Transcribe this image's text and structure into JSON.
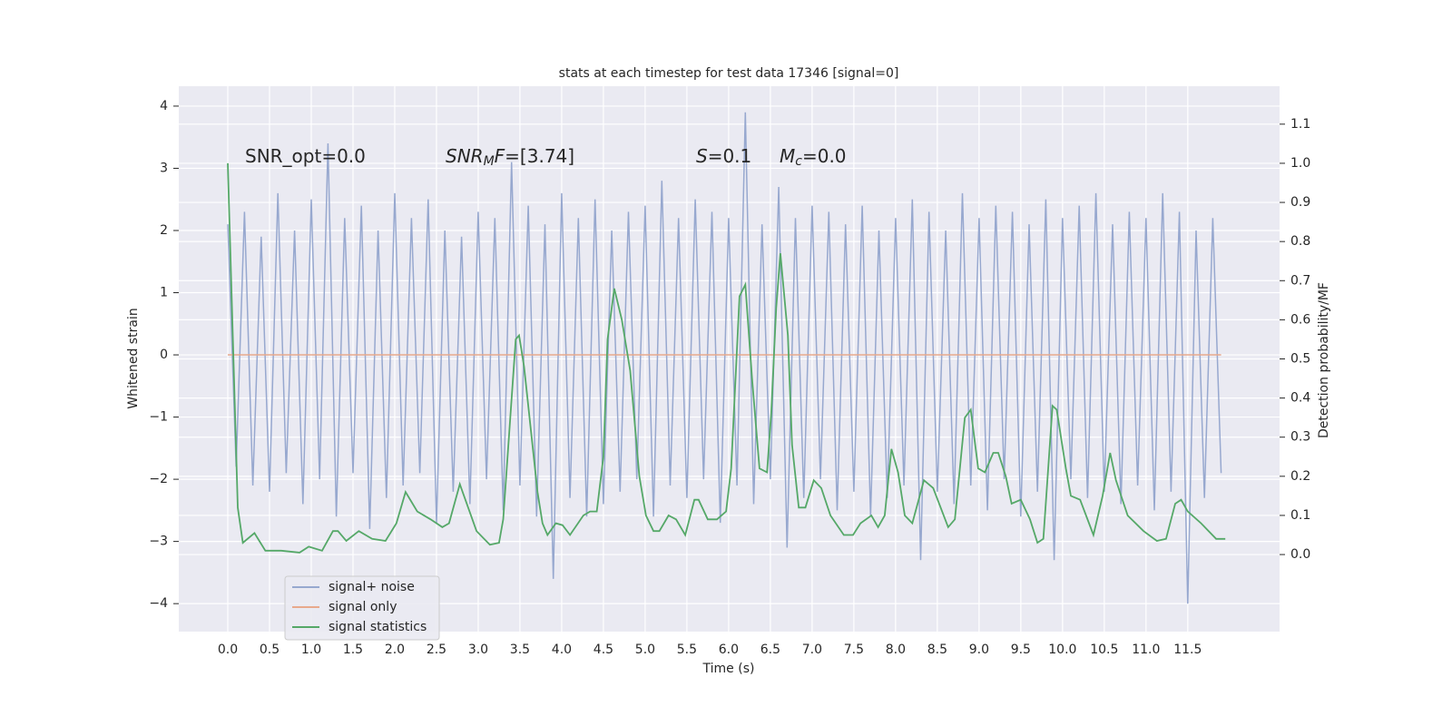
{
  "chart_data": {
    "type": "line",
    "title": "stats at each timestep for test data 17346 [signal=0]",
    "x_label": "Time (s)",
    "y_label": "Whitened strain",
    "y2_label": "Detection probability/MF",
    "annotations": [
      [
        {
          "text": "SNR_opt=0.0"
        }
      ],
      [
        {
          "text": "SNR",
          "style": "italic"
        },
        {
          "text": "M",
          "style": "sub"
        },
        {
          "text": "F",
          "style": "italic"
        },
        {
          "text": "=[3.74]"
        }
      ],
      [
        {
          "text": "S",
          "style": "italic"
        },
        {
          "text": "=0.1"
        }
      ],
      [
        {
          "text": "M",
          "style": "italic"
        },
        {
          "text": "c",
          "style": "sub"
        },
        {
          "text": "=0.0"
        }
      ]
    ],
    "xlim": [
      -0.587,
      12.6
    ],
    "ylim": [
      -4.45,
      4.32
    ],
    "y2lim": [
      -0.197,
      1.197
    ],
    "xticks": [
      {
        "value": 0,
        "label": "0.0"
      },
      0.5,
      {
        "value": 1,
        "label": "1.0"
      },
      1.5,
      {
        "value": 2,
        "label": "2.0"
      },
      2.5,
      {
        "value": 3,
        "label": "3.0"
      },
      3.5,
      {
        "value": 4,
        "label": "4.0"
      },
      4.5,
      {
        "value": 5,
        "label": "5.0"
      },
      5.5,
      {
        "value": 6,
        "label": "6.0"
      },
      6.5,
      {
        "value": 7,
        "label": "7.0"
      },
      7.5,
      {
        "value": 8,
        "label": "8.0"
      },
      8.5,
      {
        "value": 9,
        "label": "9.0"
      },
      9.5,
      {
        "value": 10,
        "label": "10.0"
      },
      10.5,
      {
        "value": 11,
        "label": "11.0"
      },
      11.5
    ],
    "yticks": [
      {
        "value": -4,
        "label": "−4"
      },
      {
        "value": -3,
        "label": "−3"
      },
      {
        "value": -2,
        "label": "−2"
      },
      {
        "value": -1,
        "label": "−1"
      },
      0,
      1,
      2,
      3,
      4
    ],
    "y2ticks": [
      {
        "value": 0,
        "label": "0.0"
      },
      0.1,
      0.2,
      0.3,
      0.4,
      0.5,
      0.6,
      0.7,
      0.8,
      0.9,
      {
        "value": 1,
        "label": "1.0"
      },
      1.1
    ],
    "grid": true,
    "legend": "lower left",
    "series": [
      {
        "name": "signal+ noise",
        "color": "#97a8cf",
        "x": [
          0,
          0.1,
          0.2,
          0.3,
          0.4,
          0.5,
          0.6,
          0.7,
          0.8,
          0.9,
          1,
          1.1,
          1.2,
          1.3,
          1.4,
          1.5,
          1.6,
          1.7,
          1.8,
          1.9,
          2,
          2.1,
          2.2,
          2.3,
          2.4,
          2.5,
          2.6,
          2.7,
          2.8,
          2.9,
          3,
          3.1,
          3.2,
          3.3,
          3.4,
          3.5,
          3.6,
          3.7,
          3.8,
          3.9,
          4,
          4.1,
          4.2,
          4.3,
          4.4,
          4.5,
          4.6,
          4.7,
          4.8,
          4.9,
          5,
          5.1,
          5.2,
          5.3,
          5.4,
          5.5,
          5.6,
          5.7,
          5.8,
          5.9,
          6,
          6.1,
          6.2,
          6.3,
          6.4,
          6.5,
          6.6,
          6.7,
          6.8,
          6.9,
          7,
          7.1,
          7.2,
          7.3,
          7.4,
          7.5,
          7.6,
          7.7,
          7.8,
          7.9,
          8,
          8.1,
          8.2,
          8.3,
          8.4,
          8.5,
          8.6,
          8.7,
          8.8,
          8.9,
          9,
          9.1,
          9.2,
          9.3,
          9.4,
          9.5,
          9.6,
          9.7,
          9.8,
          9.9,
          10,
          10.1,
          10.2,
          10.3,
          10.4,
          10.5,
          10.6,
          10.7,
          10.8,
          10.9,
          11,
          11.1,
          11.2,
          11.3,
          11.4,
          11.5,
          11.6,
          11.7,
          11.8,
          11.9
        ],
        "values": [
          2.1,
          -1.8,
          2.3,
          -2.1,
          1.9,
          -2.2,
          2.6,
          -1.9,
          2.0,
          -2.4,
          2.5,
          -2.0,
          3.4,
          -2.6,
          2.2,
          -1.9,
          2.4,
          -2.8,
          2.0,
          -2.3,
          2.6,
          -2.1,
          2.2,
          -1.9,
          2.5,
          -2.7,
          2.0,
          -2.2,
          1.9,
          -2.4,
          2.3,
          -2.0,
          2.2,
          -2.5,
          3.1,
          -2.1,
          2.4,
          -2.6,
          2.1,
          -3.6,
          2.6,
          -2.3,
          2.2,
          -2.6,
          2.5,
          -2.4,
          2.0,
          -2.2,
          2.3,
          -2.0,
          2.4,
          -2.6,
          2.8,
          -2.1,
          2.2,
          -2.3,
          2.5,
          -2.0,
          2.3,
          -2.7,
          2.2,
          -2.1,
          3.9,
          -2.4,
          2.1,
          -2.0,
          2.7,
          -3.1,
          2.2,
          -2.3,
          2.4,
          -2.0,
          2.3,
          -2.5,
          2.1,
          -2.2,
          2.4,
          -2.6,
          2.0,
          -2.3,
          2.2,
          -2.1,
          2.5,
          -3.3,
          2.3,
          -2.2,
          2.0,
          -2.4,
          2.6,
          -2.1,
          2.2,
          -2.5,
          2.4,
          -2.0,
          2.3,
          -2.6,
          2.1,
          -2.2,
          2.5,
          -3.3,
          2.2,
          -2.0,
          2.4,
          -2.3,
          2.6,
          -2.2,
          2.1,
          -2.4,
          2.3,
          -2.1,
          2.2,
          -2.5,
          2.6,
          -2.2,
          2.3,
          -4.0,
          2.0,
          -2.3,
          2.2,
          -1.9
        ]
      },
      {
        "name": "signal only",
        "color": "#e8a98c",
        "x": [
          0,
          11.9
        ],
        "values": [
          0,
          0
        ]
      },
      {
        "name": "signal statistics",
        "color": "#55a868",
        "axis": "y2",
        "x": [
          0,
          0.12,
          0.18,
          0.32,
          0.45,
          0.64,
          0.86,
          0.97,
          1.13,
          1.26,
          1.32,
          1.42,
          1.57,
          1.73,
          1.89,
          2.02,
          2.13,
          2.27,
          2.43,
          2.57,
          2.65,
          2.78,
          2.98,
          3.14,
          3.25,
          3.3,
          3.45,
          3.49,
          3.55,
          3.71,
          3.77,
          3.83,
          3.93,
          4.01,
          4.1,
          4.26,
          4.34,
          4.42,
          4.5,
          4.55,
          4.63,
          4.72,
          4.82,
          4.93,
          5.01,
          5.1,
          5.17,
          5.28,
          5.37,
          5.48,
          5.59,
          5.64,
          5.75,
          5.86,
          5.97,
          6.03,
          6.13,
          6.2,
          6.28,
          6.37,
          6.46,
          6.51,
          6.57,
          6.62,
          6.71,
          6.76,
          6.84,
          6.92,
          7.02,
          7.11,
          7.22,
          7.38,
          7.49,
          7.58,
          7.71,
          7.79,
          7.87,
          7.95,
          8.03,
          8.11,
          8.2,
          8.34,
          8.45,
          8.63,
          8.71,
          8.83,
          8.9,
          8.99,
          9.07,
          9.17,
          9.23,
          9.32,
          9.39,
          9.5,
          9.61,
          9.7,
          9.77,
          9.88,
          9.93,
          10.04,
          10.1,
          10.21,
          10.37,
          10.48,
          10.57,
          10.64,
          10.78,
          10.97,
          11.13,
          11.24,
          11.35,
          11.42,
          11.5,
          11.66,
          11.84,
          11.95
        ],
        "values": [
          1.0,
          0.12,
          0.03,
          0.055,
          0.01,
          0.01,
          0.005,
          0.02,
          0.01,
          0.06,
          0.06,
          0.035,
          0.06,
          0.04,
          0.035,
          0.08,
          0.16,
          0.11,
          0.09,
          0.07,
          0.08,
          0.18,
          0.06,
          0.025,
          0.03,
          0.09,
          0.55,
          0.56,
          0.48,
          0.16,
          0.08,
          0.05,
          0.08,
          0.075,
          0.05,
          0.1,
          0.11,
          0.11,
          0.25,
          0.55,
          0.68,
          0.6,
          0.47,
          0.2,
          0.1,
          0.06,
          0.06,
          0.1,
          0.09,
          0.05,
          0.14,
          0.14,
          0.09,
          0.09,
          0.11,
          0.22,
          0.66,
          0.69,
          0.45,
          0.22,
          0.21,
          0.36,
          0.63,
          0.77,
          0.56,
          0.28,
          0.12,
          0.12,
          0.19,
          0.17,
          0.1,
          0.05,
          0.05,
          0.08,
          0.1,
          0.07,
          0.1,
          0.27,
          0.21,
          0.1,
          0.08,
          0.19,
          0.17,
          0.07,
          0.09,
          0.35,
          0.37,
          0.22,
          0.21,
          0.26,
          0.26,
          0.2,
          0.13,
          0.14,
          0.09,
          0.03,
          0.04,
          0.38,
          0.37,
          0.22,
          0.15,
          0.14,
          0.05,
          0.15,
          0.26,
          0.19,
          0.1,
          0.06,
          0.035,
          0.04,
          0.13,
          0.14,
          0.11,
          0.08,
          0.04,
          0.04
        ]
      }
    ]
  }
}
